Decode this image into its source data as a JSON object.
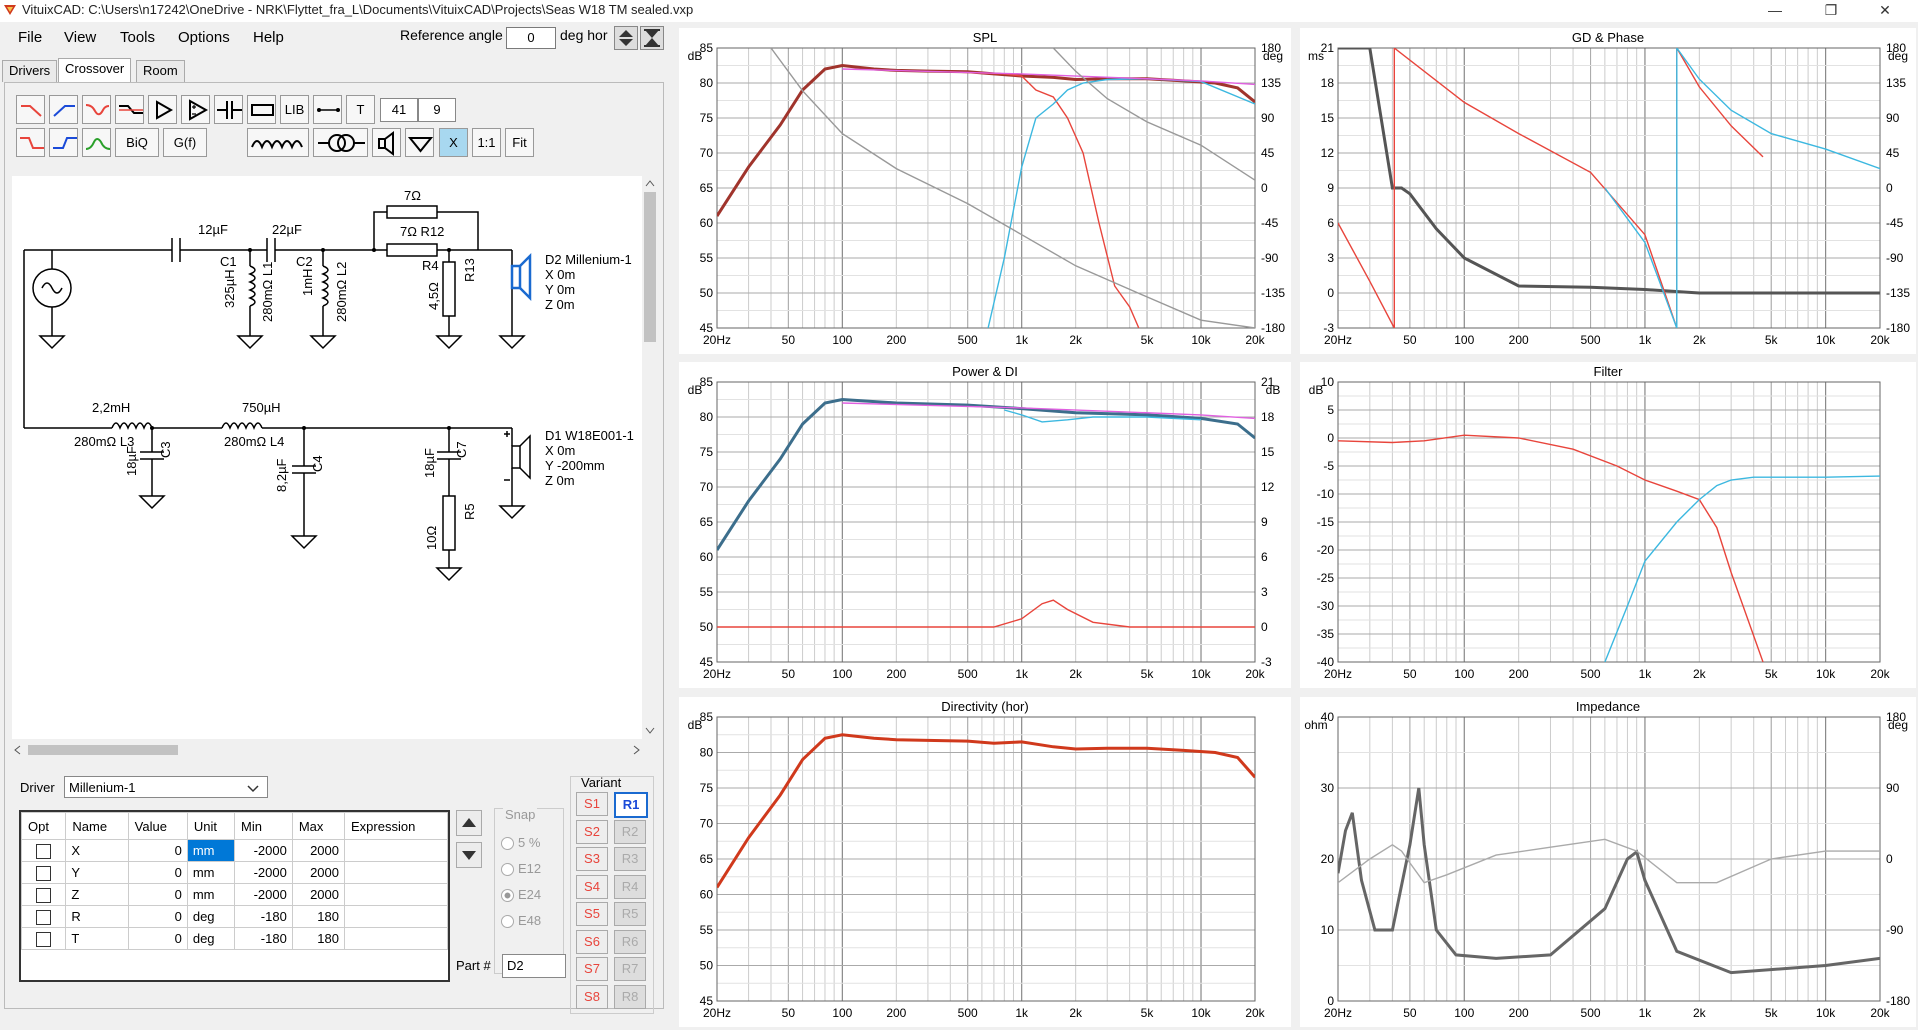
{
  "window": {
    "title": "VituixCAD: C:\\Users\\n17242\\OneDrive - NRK\\Flyttet_fra_L\\Documents\\VituixCAD\\Projects\\Seas W18 TM sealed.vxp"
  },
  "menu": [
    "File",
    "View",
    "Tools",
    "Options",
    "Help"
  ],
  "reference": {
    "label": "Reference angle",
    "value": "0",
    "unit": "deg hor"
  },
  "tabs": [
    "Drivers",
    "Crossover",
    "Room"
  ],
  "toolbar": {
    "lib": "LIB",
    "t": "T",
    "num1": "41",
    "num2": "9",
    "biq": "BiQ",
    "gf": "G(f)",
    "x": "X",
    "one": "1:1",
    "fit": "Fit"
  },
  "schematic": {
    "c1_val": "12µF",
    "c1": "C1",
    "c2_val": "22µF",
    "c2": "C2",
    "l1_val": "325µH",
    "l1": "280mΩ L1",
    "l2_val": "1mH",
    "l2": "280mΩ L2",
    "r12_val": "7Ω",
    "r12": "7Ω R12",
    "r4": "R4",
    "r4_val": "4,5Ω",
    "r13": "R13",
    "d2_name": "D2 Millenium-1",
    "d2_x": "X 0m",
    "d2_y": "Y 0m",
    "d2_z": "Z 0m",
    "l3_val": "2,2mH",
    "l3": "280mΩ L3",
    "c3_val": "18µF",
    "c3": "C3",
    "l4_val": "750µH",
    "l4": "280mΩ L4",
    "c4_val": "8,2µF",
    "c4": "C4",
    "c7_val": "18µF",
    "c7": "C7",
    "r5_val": "10Ω",
    "r5": "R5",
    "d1_name": "D1 W18E001-1",
    "d1_x": "X 0m",
    "d1_y": "Y -200mm",
    "d1_z": "Z 0m"
  },
  "driver": {
    "label": "Driver",
    "value": "Millenium-1"
  },
  "table": {
    "headers": [
      "Opt",
      "Name",
      "Value",
      "Unit",
      "Min",
      "Max",
      "Expression"
    ],
    "rows": [
      {
        "name": "X",
        "value": "0",
        "unit": "mm",
        "min": "-2000",
        "max": "2000"
      },
      {
        "name": "Y",
        "value": "0",
        "unit": "mm",
        "min": "-2000",
        "max": "2000"
      },
      {
        "name": "Z",
        "value": "0",
        "unit": "mm",
        "min": "-2000",
        "max": "2000"
      },
      {
        "name": "R",
        "value": "0",
        "unit": "deg",
        "min": "-180",
        "max": "180"
      },
      {
        "name": "T",
        "value": "0",
        "unit": "deg",
        "min": "-180",
        "max": "180"
      }
    ]
  },
  "snap": {
    "label": "Snap",
    "options": [
      "5 %",
      "E12",
      "E24",
      "E48"
    ]
  },
  "variant": {
    "label": "Variant",
    "s": [
      "S1",
      "S2",
      "S3",
      "S4",
      "S5",
      "S6",
      "S7",
      "S8"
    ],
    "r": [
      "R1",
      "R2",
      "R3",
      "R4",
      "R5",
      "R6",
      "R7",
      "R8"
    ]
  },
  "part": {
    "label": "Part #",
    "value": "D2"
  },
  "colors": {
    "red": "#e8453c",
    "cyan": "#3cb8e0",
    "purple": "#a040d0",
    "gray": "#555555",
    "magenta": "#e060e0"
  },
  "chart_data": [
    {
      "type": "line",
      "title": "SPL",
      "ylabel": "dB",
      "y2label": "deg",
      "x_ticks": [
        "20Hz",
        "50",
        "100",
        "200",
        "500",
        "1k",
        "2k",
        "5k",
        "10k",
        "20k"
      ],
      "y_ticks": [
        "85",
        "80",
        "75",
        "70",
        "65",
        "60",
        "55",
        "50",
        "45"
      ],
      "y2_ticks": [
        "180",
        "135",
        "90",
        "45",
        "0",
        "-45",
        "-90",
        "-135",
        "-180"
      ],
      "ylim": [
        45,
        85
      ],
      "y2lim": [
        -180,
        180
      ],
      "xlim": [
        20,
        20000
      ],
      "xscale": "log",
      "series": [
        {
          "color": "#a0342c",
          "x": [
            20,
            30,
            45,
            60,
            80,
            100,
            150,
            200,
            300,
            500,
            700,
            1000,
            1500,
            2000,
            3000,
            5000,
            8000,
            12000,
            16000,
            20000
          ],
          "y": [
            61,
            68,
            74,
            79,
            82,
            82.5,
            82,
            81.8,
            81.7,
            81.6,
            81.3,
            81,
            80.8,
            80.5,
            80.6,
            80.6,
            80.3,
            80,
            79.3,
            77.3
          ]
        },
        {
          "color": "#e8453c",
          "x": [
            400,
            600,
            800,
            1000,
            1200,
            1500,
            1800,
            2200,
            2700,
            3300,
            4000,
            4500
          ],
          "y": [
            81.6,
            81.4,
            81.3,
            81,
            79,
            78,
            75,
            70,
            60,
            51,
            48,
            45
          ]
        },
        {
          "color": "#3cb8e0",
          "x": [
            650,
            800,
            1000,
            1200,
            1500,
            1800,
            2200,
            3000,
            5000,
            10000,
            20000
          ],
          "y": [
            45,
            55,
            68,
            75,
            77,
            79,
            80,
            80.5,
            80.6,
            80.2,
            77
          ]
        },
        {
          "color": "#e060e0",
          "x": [
            100,
            1000,
            10000,
            20000
          ],
          "y": [
            82,
            81.3,
            80.3,
            79.8
          ]
        },
        {
          "color": "#999999",
          "axis": "y2",
          "x": [
            40,
            60,
            100,
            200,
            500,
            1000,
            2000,
            5000,
            10000,
            20000
          ],
          "y": [
            180,
            125,
            70,
            25,
            -20,
            -60,
            -100,
            -140,
            -170,
            -180
          ]
        },
        {
          "color": "#999999",
          "axis": "y2",
          "x": [
            1500,
            2000,
            3000,
            5000,
            10000,
            20000
          ],
          "y": [
            180,
            150,
            115,
            85,
            55,
            10
          ]
        }
      ]
    },
    {
      "type": "line",
      "title": "GD & Phase",
      "ylabel": "ms",
      "y2label": "deg",
      "x_ticks": [
        "20Hz",
        "50",
        "100",
        "200",
        "500",
        "1k",
        "2k",
        "5k",
        "10k",
        "20k"
      ],
      "y_ticks": [
        "21",
        "18",
        "15",
        "12",
        "9",
        "6",
        "3",
        "0",
        "-3"
      ],
      "y2_ticks": [
        "180",
        "135",
        "90",
        "45",
        "0",
        "-45",
        "-90",
        "-135",
        "-180"
      ],
      "ylim": [
        -3,
        21
      ],
      "y2lim": [
        -180,
        180
      ],
      "xlim": [
        20,
        20000
      ],
      "xscale": "log",
      "series": [
        {
          "color": "#555555",
          "x": [
            20,
            30,
            40,
            45,
            50,
            70,
            100,
            200,
            500,
            1000,
            2000,
            10000,
            20000
          ],
          "y": [
            21,
            21,
            9,
            9,
            8.5,
            5.5,
            3,
            0.6,
            0.5,
            0.3,
            0,
            0,
            0
          ]
        },
        {
          "color": "#e8453c",
          "axis": "y2",
          "x": [
            20,
            30,
            41,
            41,
            100,
            200,
            500,
            1000,
            1500,
            1500,
            2000,
            3000,
            4500
          ],
          "y": [
            -45,
            -120,
            -180,
            180,
            110,
            70,
            20,
            -60,
            -180,
            180,
            130,
            80,
            40
          ]
        },
        {
          "color": "#3cb8e0",
          "axis": "y2",
          "x": [
            600,
            1000,
            1500,
            1500,
            2000,
            3000,
            5000,
            10000,
            20000
          ],
          "y": [
            0,
            -70,
            -180,
            180,
            140,
            100,
            70,
            50,
            25
          ]
        }
      ]
    },
    {
      "type": "line",
      "title": "Power & DI",
      "ylabel": "dB",
      "y2label": "dB",
      "x_ticks": [
        "20Hz",
        "50",
        "100",
        "200",
        "500",
        "1k",
        "2k",
        "5k",
        "10k",
        "20k"
      ],
      "y_ticks": [
        "85",
        "80",
        "75",
        "70",
        "65",
        "60",
        "55",
        "50",
        "45"
      ],
      "y2_ticks": [
        "21",
        "18",
        "15",
        "12",
        "9",
        "6",
        "3",
        "0",
        "-3"
      ],
      "ylim": [
        45,
        85
      ],
      "y2lim": [
        -3,
        21
      ],
      "xlim": [
        20,
        20000
      ],
      "xscale": "log",
      "series": [
        {
          "color": "#3c6e8c",
          "x": [
            20,
            30,
            45,
            60,
            80,
            100,
            200,
            500,
            1000,
            2000,
            5000,
            10000,
            16000,
            20000
          ],
          "y": [
            61,
            68,
            74,
            79,
            82,
            82.5,
            82,
            81.7,
            81.2,
            80.6,
            80.3,
            79.8,
            79,
            77
          ]
        },
        {
          "color": "#3cb8e0",
          "x": [
            800,
            1000,
            1300,
            1800,
            2500,
            5000,
            10000
          ],
          "y": [
            81,
            80.3,
            79.3,
            79.6,
            80,
            80,
            79.6
          ]
        },
        {
          "color": "#e060e0",
          "x": [
            100,
            1000,
            10000,
            20000
          ],
          "y": [
            82,
            81.3,
            80.3,
            79.8
          ]
        },
        {
          "color": "#e8453c",
          "axis": "y2",
          "x": [
            20,
            700,
            1000,
            1300,
            1500,
            1800,
            2500,
            4000,
            20000
          ],
          "y": [
            0,
            0,
            0.7,
            2,
            2.3,
            1.5,
            0.4,
            0,
            0
          ]
        }
      ]
    },
    {
      "type": "line",
      "title": "Filter",
      "ylabel": "dB",
      "x_ticks": [
        "20Hz",
        "50",
        "100",
        "200",
        "500",
        "1k",
        "2k",
        "5k",
        "10k",
        "20k"
      ],
      "y_ticks": [
        "10",
        "5",
        "0",
        "-5",
        "-10",
        "-15",
        "-20",
        "-25",
        "-30",
        "-35",
        "-40"
      ],
      "ylim": [
        -40,
        10
      ],
      "xlim": [
        20,
        20000
      ],
      "xscale": "log",
      "series": [
        {
          "color": "#e8453c",
          "x": [
            20,
            40,
            60,
            100,
            200,
            400,
            700,
            1000,
            1500,
            2000,
            2500,
            3000,
            4500
          ],
          "y": [
            -0.5,
            -0.8,
            -0.5,
            0.5,
            0,
            -2,
            -5,
            -7.5,
            -9.5,
            -11,
            -16,
            -24,
            -40
          ]
        },
        {
          "color": "#3cb8e0",
          "x": [
            600,
            800,
            1000,
            1500,
            2000,
            2500,
            3000,
            4000,
            5000,
            10000,
            20000
          ],
          "y": [
            -40,
            -30,
            -22,
            -15,
            -11,
            -8.5,
            -7.5,
            -7,
            -7,
            -7,
            -6.8
          ]
        }
      ]
    },
    {
      "type": "line",
      "title": "Directivity (hor)",
      "ylabel": "dB",
      "x_ticks": [
        "20Hz",
        "50",
        "100",
        "200",
        "500",
        "1k",
        "2k",
        "5k",
        "10k",
        "20k"
      ],
      "y_ticks": [
        "85",
        "80",
        "75",
        "70",
        "65",
        "60",
        "55",
        "50",
        "45"
      ],
      "ylim": [
        45,
        85
      ],
      "xlim": [
        20,
        20000
      ],
      "xscale": "log",
      "series": [
        {
          "color": "#d0391c",
          "x": [
            20,
            30,
            45,
            60,
            80,
            100,
            150,
            200,
            300,
            500,
            700,
            1000,
            1500,
            2000,
            3000,
            5000,
            8000,
            12000,
            16000,
            20000
          ],
          "y": [
            61,
            68,
            74,
            79,
            82,
            82.5,
            82,
            81.8,
            81.7,
            81.6,
            81.3,
            81.5,
            80.8,
            80.5,
            80.6,
            80.6,
            80.3,
            80,
            79.3,
            76.5
          ]
        }
      ]
    },
    {
      "type": "line",
      "title": "Impedance",
      "ylabel": "ohm",
      "y2label": "deg",
      "x_ticks": [
        "20Hz",
        "50",
        "100",
        "200",
        "500",
        "1k",
        "2k",
        "5k",
        "10k",
        "20k"
      ],
      "y_ticks": [
        "40",
        "30",
        "20",
        "10",
        "0"
      ],
      "y2_ticks": [
        "180",
        "90",
        "0",
        "-90",
        "-180"
      ],
      "ylim": [
        0,
        40
      ],
      "y2lim": [
        -180,
        180
      ],
      "xlim": [
        20,
        20000
      ],
      "xscale": "log",
      "series": [
        {
          "color": "#666666",
          "x": [
            20,
            22,
            24,
            27,
            32,
            40,
            50,
            56,
            60,
            70,
            90,
            150,
            300,
            600,
            800,
            900,
            1000,
            1500,
            3000,
            10000,
            20000
          ],
          "y": [
            18,
            24,
            26.5,
            17,
            10,
            10,
            22,
            30,
            22,
            10,
            6.5,
            6,
            6.5,
            13,
            20,
            21,
            17,
            7,
            4,
            5,
            6
          ]
        },
        {
          "color": "#aaaaaa",
          "axis": "y2",
          "x": [
            20,
            30,
            40,
            45,
            50,
            60,
            80,
            150,
            300,
            600,
            900,
            1500,
            2500,
            5000,
            10000,
            20000
          ],
          "y": [
            -30,
            0,
            18,
            10,
            -5,
            -30,
            -20,
            5,
            15,
            25,
            10,
            -30,
            -30,
            0,
            10,
            10
          ]
        }
      ]
    }
  ]
}
